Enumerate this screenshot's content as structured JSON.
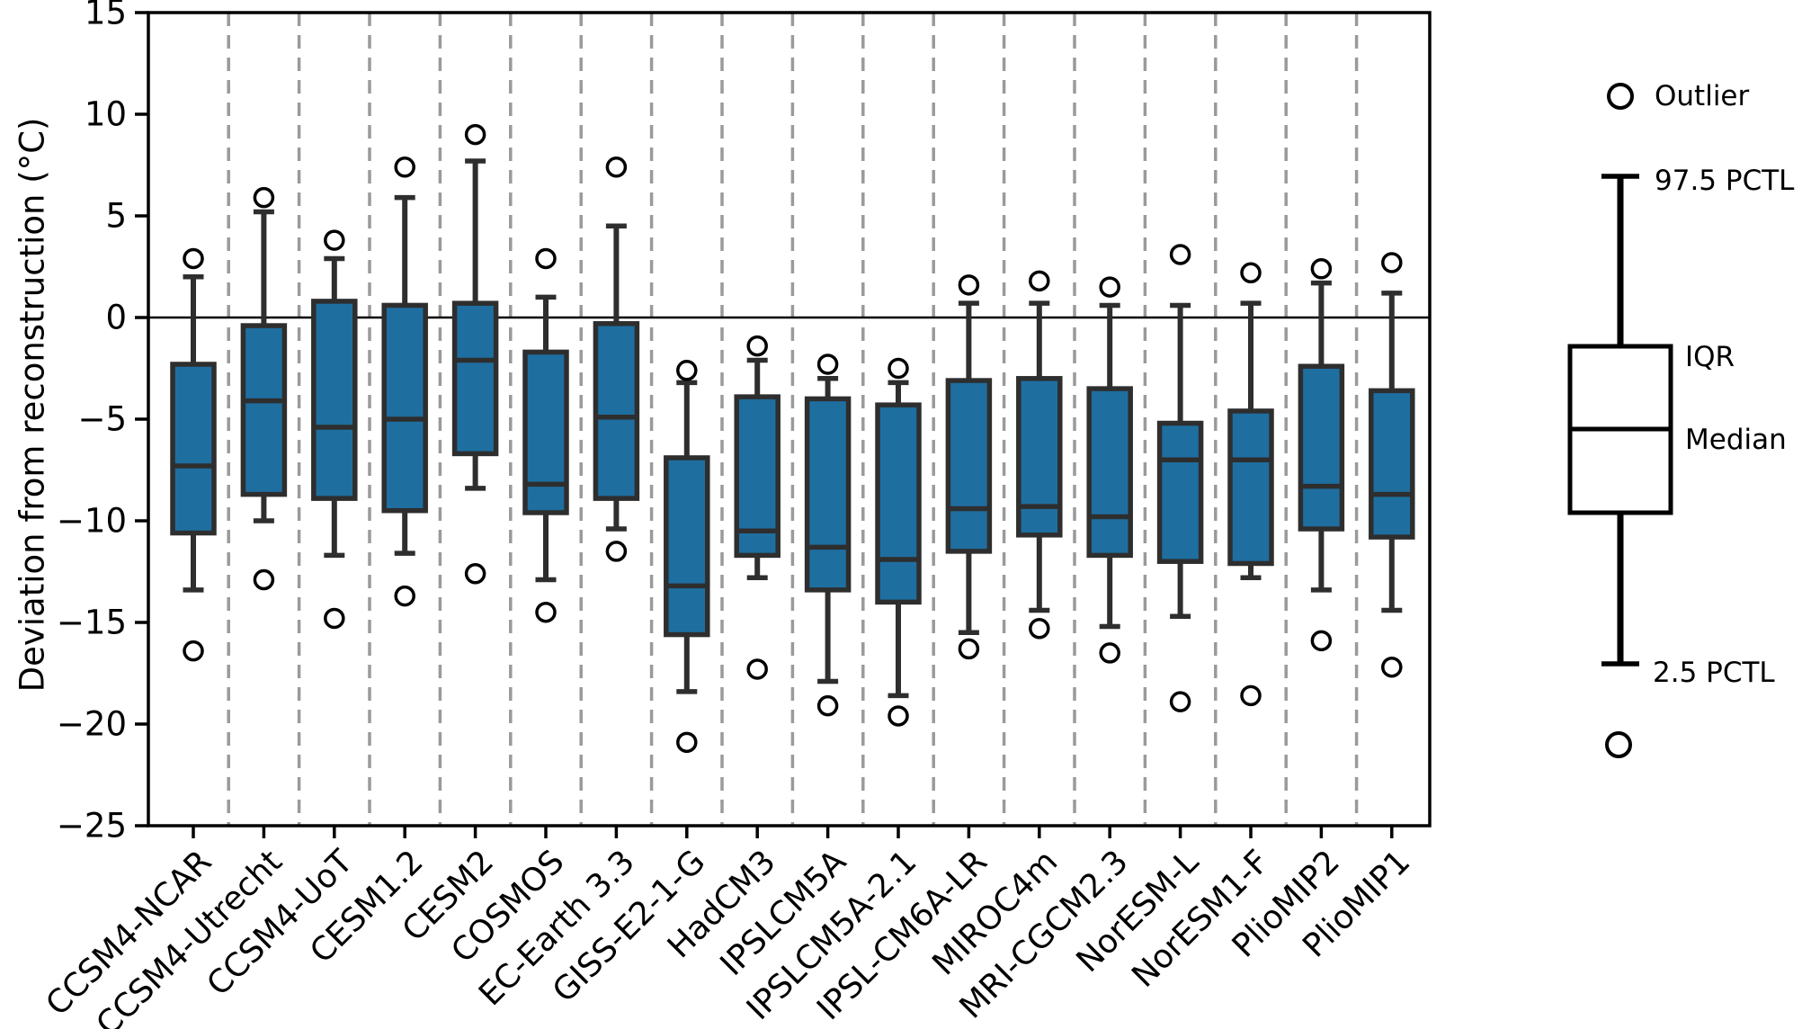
{
  "figure": {
    "background": "#ffffff"
  },
  "colors": {
    "box_fill": "#1f6ea0",
    "box_edge": "#2e2e2e",
    "whisker": "#2e2e2e",
    "outlier_edge": "#000000",
    "grid": "#9a9a9a",
    "axis": "#000000",
    "zero_line": "#000000"
  },
  "chart_data": {
    "type": "box",
    "title": "",
    "xlabel": "",
    "ylabel": "Deviation from reconstruction (°C)",
    "ylim": [
      -25,
      15
    ],
    "yticks": [
      15,
      10,
      5,
      0,
      -5,
      -10,
      -15,
      -20,
      -25
    ],
    "zero_line": 0,
    "grid": "vertical dashed separators between categories",
    "legend_position": "right",
    "categories": [
      "CCSM4-NCAR",
      "CCSM4-Utrecht",
      "CCSM4-UoT",
      "CESM1.2",
      "CESM2",
      "COSMOS",
      "EC-Earth 3.3",
      "GISS-E2-1-G",
      "HadCM3",
      "IPSLCM5A",
      "IPSLCM5A-2.1",
      "IPSL-CM6A-LR",
      "MIROC4m",
      "MRI-CGCM2.3",
      "NorESM-L",
      "NorESM1-F",
      "PlioMIP2",
      "PlioMIP1"
    ],
    "boxes": [
      {
        "label": "CCSM4-NCAR",
        "whisker_low": -13.4,
        "q1": -10.6,
        "median": -7.3,
        "q3": -2.3,
        "whisker_high": 2.0,
        "outliers": [
          2.9,
          -16.4
        ]
      },
      {
        "label": "CCSM4-Utrecht",
        "whisker_low": -10.0,
        "q1": -8.7,
        "median": -4.1,
        "q3": -0.4,
        "whisker_high": 5.2,
        "outliers": [
          5.9,
          -12.9
        ]
      },
      {
        "label": "CCSM4-UoT",
        "whisker_low": -11.7,
        "q1": -8.9,
        "median": -5.4,
        "q3": 0.8,
        "whisker_high": 2.9,
        "outliers": [
          3.8,
          -14.8
        ]
      },
      {
        "label": "CESM1.2",
        "whisker_low": -11.6,
        "q1": -9.5,
        "median": -5.0,
        "q3": 0.6,
        "whisker_high": 5.9,
        "outliers": [
          7.4,
          -13.7
        ]
      },
      {
        "label": "CESM2",
        "whisker_low": -8.4,
        "q1": -6.7,
        "median": -2.1,
        "q3": 0.7,
        "whisker_high": 7.7,
        "outliers": [
          9.0,
          -12.6
        ]
      },
      {
        "label": "COSMOS",
        "whisker_low": -12.9,
        "q1": -9.6,
        "median": -8.2,
        "q3": -1.7,
        "whisker_high": 1.0,
        "outliers": [
          2.9,
          -14.5
        ]
      },
      {
        "label": "EC-Earth 3.3",
        "whisker_low": -10.4,
        "q1": -8.9,
        "median": -4.9,
        "q3": -0.3,
        "whisker_high": 4.5,
        "outliers": [
          7.4,
          -11.5
        ]
      },
      {
        "label": "GISS-E2-1-G",
        "whisker_low": -18.4,
        "q1": -15.6,
        "median": -13.2,
        "q3": -6.9,
        "whisker_high": -3.2,
        "outliers": [
          -2.6,
          -20.9
        ]
      },
      {
        "label": "HadCM3",
        "whisker_low": -12.8,
        "q1": -11.7,
        "median": -10.5,
        "q3": -3.9,
        "whisker_high": -2.1,
        "outliers": [
          -1.4,
          -17.3
        ]
      },
      {
        "label": "IPSLCM5A",
        "whisker_low": -17.9,
        "q1": -13.4,
        "median": -11.3,
        "q3": -4.0,
        "whisker_high": -3.0,
        "outliers": [
          -2.3,
          -19.1
        ]
      },
      {
        "label": "IPSLCM5A-2.1",
        "whisker_low": -18.6,
        "q1": -14.0,
        "median": -11.9,
        "q3": -4.3,
        "whisker_high": -3.2,
        "outliers": [
          -2.5,
          -19.6
        ]
      },
      {
        "label": "IPSL-CM6A-LR",
        "whisker_low": -15.5,
        "q1": -11.5,
        "median": -9.4,
        "q3": -3.1,
        "whisker_high": 0.7,
        "outliers": [
          1.6,
          -16.3
        ]
      },
      {
        "label": "MIROC4m",
        "whisker_low": -14.4,
        "q1": -10.7,
        "median": -9.3,
        "q3": -3.0,
        "whisker_high": 0.7,
        "outliers": [
          1.8,
          -15.3
        ]
      },
      {
        "label": "MRI-CGCM2.3",
        "whisker_low": -15.2,
        "q1": -11.7,
        "median": -9.8,
        "q3": -3.5,
        "whisker_high": 0.6,
        "outliers": [
          1.5,
          -16.5
        ]
      },
      {
        "label": "NorESM-L",
        "whisker_low": -14.7,
        "q1": -12.0,
        "median": -7.0,
        "q3": -5.2,
        "whisker_high": 0.6,
        "outliers": [
          3.1,
          -18.9
        ]
      },
      {
        "label": "NorESM1-F",
        "whisker_low": -12.8,
        "q1": -12.1,
        "median": -7.0,
        "q3": -4.6,
        "whisker_high": 0.7,
        "outliers": [
          2.2,
          -18.6
        ]
      },
      {
        "label": "PlioMIP2",
        "whisker_low": -13.4,
        "q1": -10.4,
        "median": -8.3,
        "q3": -2.4,
        "whisker_high": 1.7,
        "outliers": [
          2.4,
          -15.9
        ]
      },
      {
        "label": "PlioMIP1",
        "whisker_low": -14.4,
        "q1": -10.8,
        "median": -8.7,
        "q3": -3.6,
        "whisker_high": 1.2,
        "outliers": [
          2.7,
          -17.2
        ]
      }
    ]
  },
  "legend": {
    "outlier_label": "Outlier",
    "upper_whisker_label": "97.5 PCTL",
    "iqr_label": "IQR",
    "median_label": "Median",
    "lower_whisker_label": "2.5 PCTL"
  }
}
